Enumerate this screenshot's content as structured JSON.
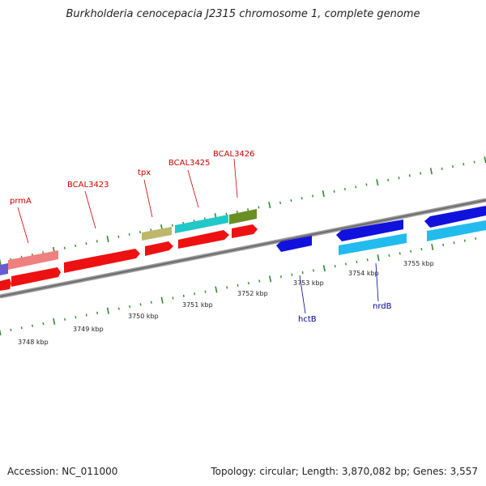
{
  "header": {
    "title": "Burkholderia cenocepacia J2315 chromosome 1, complete genome"
  },
  "footer": {
    "accession": "Accession: NC_011000",
    "summary": "Topology: circular; Length: 3,870,082 bp; Genes: 3,557"
  },
  "colors": {
    "forward_cds": "#ee1111",
    "reverse_cds": "#1111dd",
    "forward_label": "#cc0000",
    "reverse_label": "#000099",
    "ticks": "#2e8b2e",
    "backbone": "#888888"
  },
  "scale_labels": [
    "3748 kbp",
    "3749 kbp",
    "3750 kbp",
    "3751 kbp",
    "3752 kbp",
    "3753 kbp",
    "3754 kbp",
    "3755 kbp"
  ],
  "gene_labels": {
    "forward": [
      "prmA",
      "BCAL3423",
      "tpx",
      "BCAL3425",
      "BCAL3426"
    ],
    "reverse": [
      "hctB",
      "nrdB"
    ]
  }
}
